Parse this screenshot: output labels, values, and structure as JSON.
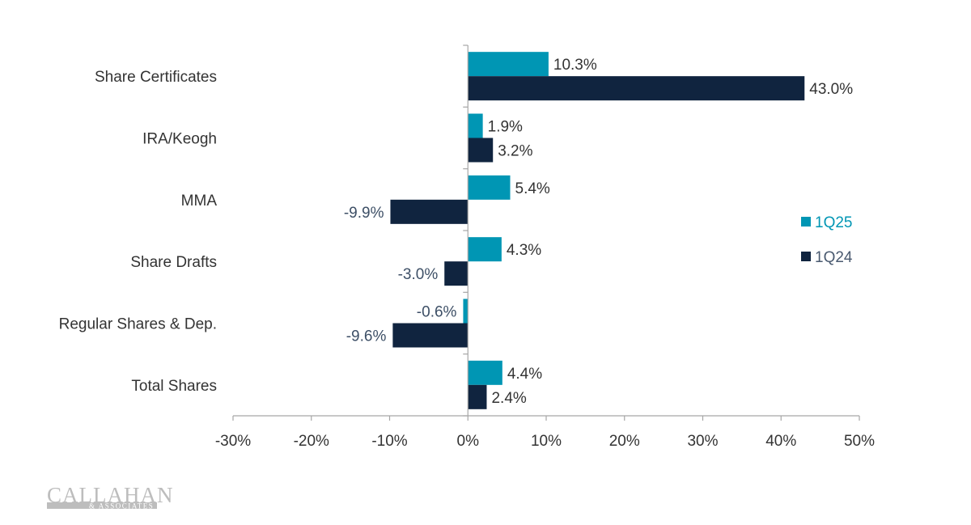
{
  "chart_data": {
    "type": "bar",
    "orientation": "horizontal",
    "categories": [
      "Share Certificates",
      "IRA/Keogh",
      "MMA",
      "Share Drafts",
      "Regular Shares & Dep.",
      "Total Shares"
    ],
    "series": [
      {
        "name": "1Q25",
        "color": "#0096b4",
        "values": [
          10.3,
          1.9,
          5.4,
          4.3,
          -0.6,
          4.4
        ],
        "labels": [
          "10.3%",
          "1.9%",
          "5.4%",
          "4.3%",
          "-0.6%",
          "4.4%"
        ]
      },
      {
        "name": "1Q24",
        "color": "#10243f",
        "values": [
          43.0,
          3.2,
          -9.9,
          -3.0,
          -9.6,
          2.4
        ],
        "labels": [
          "43.0%",
          "3.2%",
          "-9.9%",
          "-3.0%",
          "-9.6%",
          "2.4%"
        ]
      }
    ],
    "xlim": [
      -30,
      50
    ],
    "xticks": [
      -30,
      -20,
      -10,
      0,
      10,
      20,
      30,
      40,
      50
    ],
    "xtick_labels": [
      "-30%",
      "-20%",
      "-10%",
      "0%",
      "10%",
      "20%",
      "30%",
      "40%",
      "50%"
    ],
    "xlabel": "",
    "ylabel": "",
    "title": "",
    "grid": false,
    "legend_position": "right"
  },
  "branding": {
    "logo": "CALLAHAN & ASSOCIATES"
  }
}
